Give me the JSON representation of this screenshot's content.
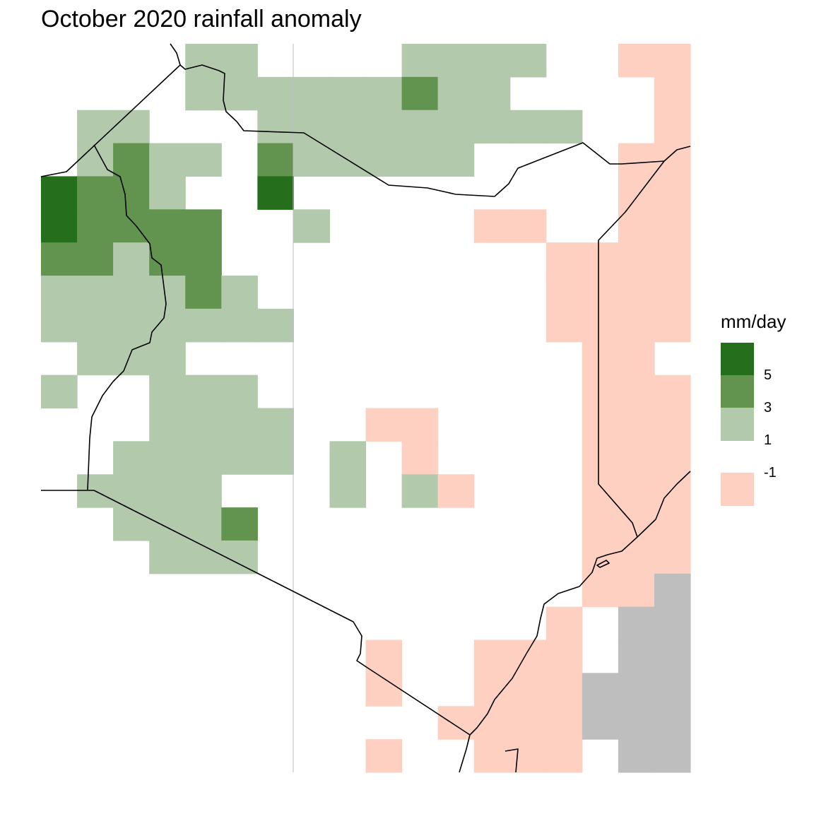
{
  "title": "October 2020 rainfall anomaly",
  "legend": {
    "title": "mm/day",
    "ticks": [
      "5",
      "3",
      "1",
      "-1"
    ],
    "classes": [
      {
        "level": "above 5",
        "color": "#256e1c"
      },
      {
        "level": "3 to 5",
        "color": "#63944f"
      },
      {
        "level": "1 to 3",
        "color": "#b2caab"
      },
      {
        "level": "-1 to 1",
        "color": "#ffffff"
      },
      {
        "level": "below -1",
        "color": "#fdd0c2"
      }
    ],
    "no_data_color": "#bebebe"
  },
  "colors": {
    "border": "#000000",
    "reference_line": "#bebebe",
    "background": "#ffffff"
  },
  "grid": {
    "columns": 18,
    "rows": 22,
    "codes": {
      ".": "-1 to 1",
      "1": "1 to 3",
      "3": "3 to 5",
      "5": "above 5",
      "n": "below -1",
      "x": "no data"
    },
    "cells": [
      "....11....1111..nn",
      "....111111311....n",
      ".11...111111111..n",
      ".1311.311111....nn",
      "5331..5.........nn",
      "53333..1....nn..nn",
      "33133.........nnnn",
      "111131........nnnn",
      "1111111.......nnnn",
      ".111...........nn.",
      "1..111.........nnn",
      "...1111..nn....nnn",
      "..11111.1.n....nnn",
      ".1111...1.1n...nnn",
      "..1113.........nnn",
      "...111.........nnn",
      "...............nnx",
      "..............n.xx",
      ".........n..nnn.xx",
      ".........n..nnnxxx",
      "...........nnnnxxx",
      ".........n..nnn.xx"
    ]
  }
}
